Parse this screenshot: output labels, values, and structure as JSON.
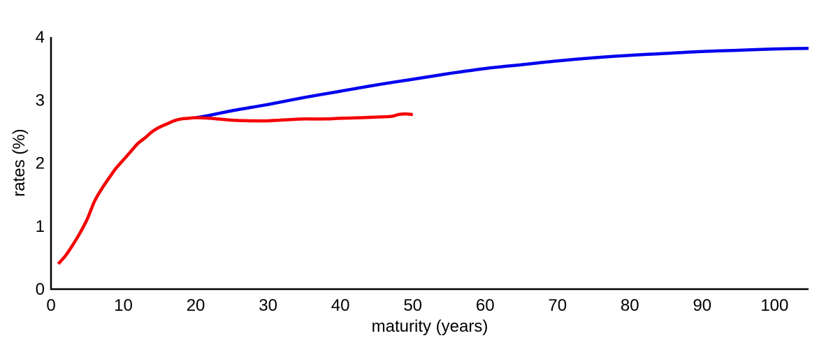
{
  "chart_data": {
    "type": "line",
    "title": "",
    "xlabel": "maturity (years)",
    "ylabel": "rates (%)",
    "xlim": [
      0,
      104.7
    ],
    "ylim": [
      0,
      4
    ],
    "xticks": [
      0,
      10,
      20,
      30,
      40,
      50,
      60,
      70,
      80,
      90,
      100
    ],
    "yticks": [
      0,
      1,
      2,
      3,
      4
    ],
    "grid": false,
    "legend": null,
    "axis_color": "#000000",
    "background_color": "#ffffff",
    "series": [
      {
        "name": "blue",
        "color": "#0000ee",
        "line_width": 4.5,
        "x": [
          20,
          22,
          25,
          30,
          35,
          40,
          45,
          50,
          55,
          60,
          65,
          70,
          75,
          80,
          85,
          90,
          95,
          100,
          104.7
        ],
        "y": [
          2.72,
          2.76,
          2.83,
          2.93,
          3.04,
          3.14,
          3.24,
          3.33,
          3.42,
          3.5,
          3.56,
          3.62,
          3.67,
          3.71,
          3.74,
          3.77,
          3.79,
          3.81,
          3.82
        ]
      },
      {
        "name": "red",
        "color": "#f40000",
        "line_width": 4.5,
        "x": [
          1,
          2,
          3,
          4,
          5,
          6,
          7,
          8,
          9,
          10,
          11,
          12,
          13,
          14,
          15,
          16,
          17,
          18,
          19,
          20,
          22,
          25,
          28,
          30,
          33,
          35,
          38,
          40,
          43,
          45,
          47,
          48,
          49,
          50
        ],
        "y": [
          0.4,
          0.53,
          0.7,
          0.89,
          1.11,
          1.39,
          1.59,
          1.76,
          1.92,
          2.05,
          2.18,
          2.31,
          2.4,
          2.5,
          2.57,
          2.62,
          2.67,
          2.7,
          2.71,
          2.72,
          2.71,
          2.68,
          2.67,
          2.67,
          2.69,
          2.7,
          2.7,
          2.71,
          2.72,
          2.73,
          2.74,
          2.77,
          2.78,
          2.77
        ]
      }
    ]
  }
}
